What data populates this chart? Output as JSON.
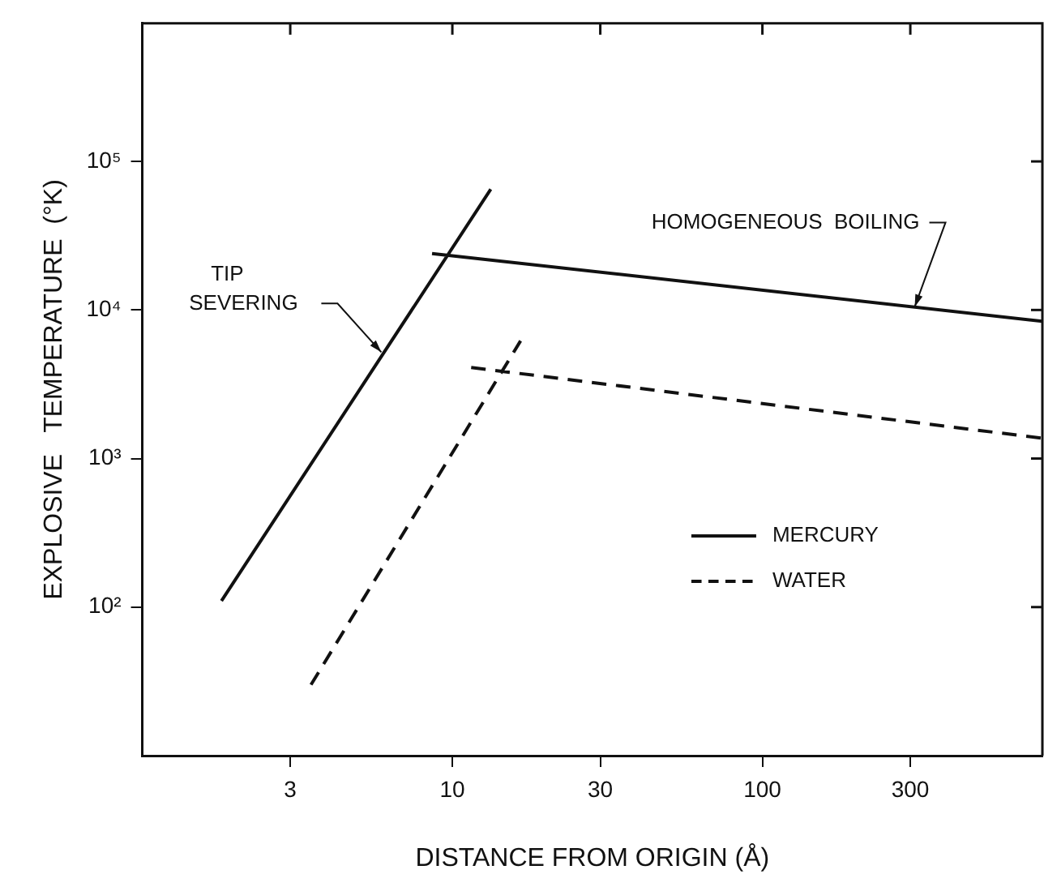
{
  "chart_data": {
    "type": "line",
    "xlabel": "DISTANCE FROM ORIGIN (Å)",
    "ylabel": "EXPLOSIVE   TEMPERATURE  (°K)",
    "log": "xy",
    "xlim": [
      1,
      800
    ],
    "ylim": [
      10,
      850000
    ],
    "xticks": [
      3,
      10,
      30,
      100,
      300
    ],
    "yticks": [
      {
        "value": 100,
        "label": "10²"
      },
      {
        "value": 1000,
        "label": "10³"
      },
      {
        "value": 10000,
        "label": "10⁴"
      },
      {
        "value": 100000,
        "label": "10⁵"
      }
    ],
    "grid": false,
    "legend": "center right",
    "marker": "none",
    "series": [
      {
        "name": "MERCURY",
        "color": "#111111",
        "line_style": "solid",
        "x": [
          1.8,
          13.3,
          null,
          8.6,
          800
        ],
        "values": [
          110,
          65000,
          null,
          24000,
          8400
        ]
      },
      {
        "name": "WATER",
        "color": "#111111",
        "line_style": "dashed",
        "x": [
          3.5,
          16.6,
          null,
          11.5,
          800
        ],
        "values": [
          30,
          6200,
          null,
          4100,
          1370
        ]
      }
    ],
    "annotations": [
      {
        "text": "TIP\nSEVERING",
        "x": 5.9,
        "y": 5200
      },
      {
        "text": "HOMOGENEOUS  BOILING",
        "x": 310,
        "y": 10500
      }
    ]
  }
}
